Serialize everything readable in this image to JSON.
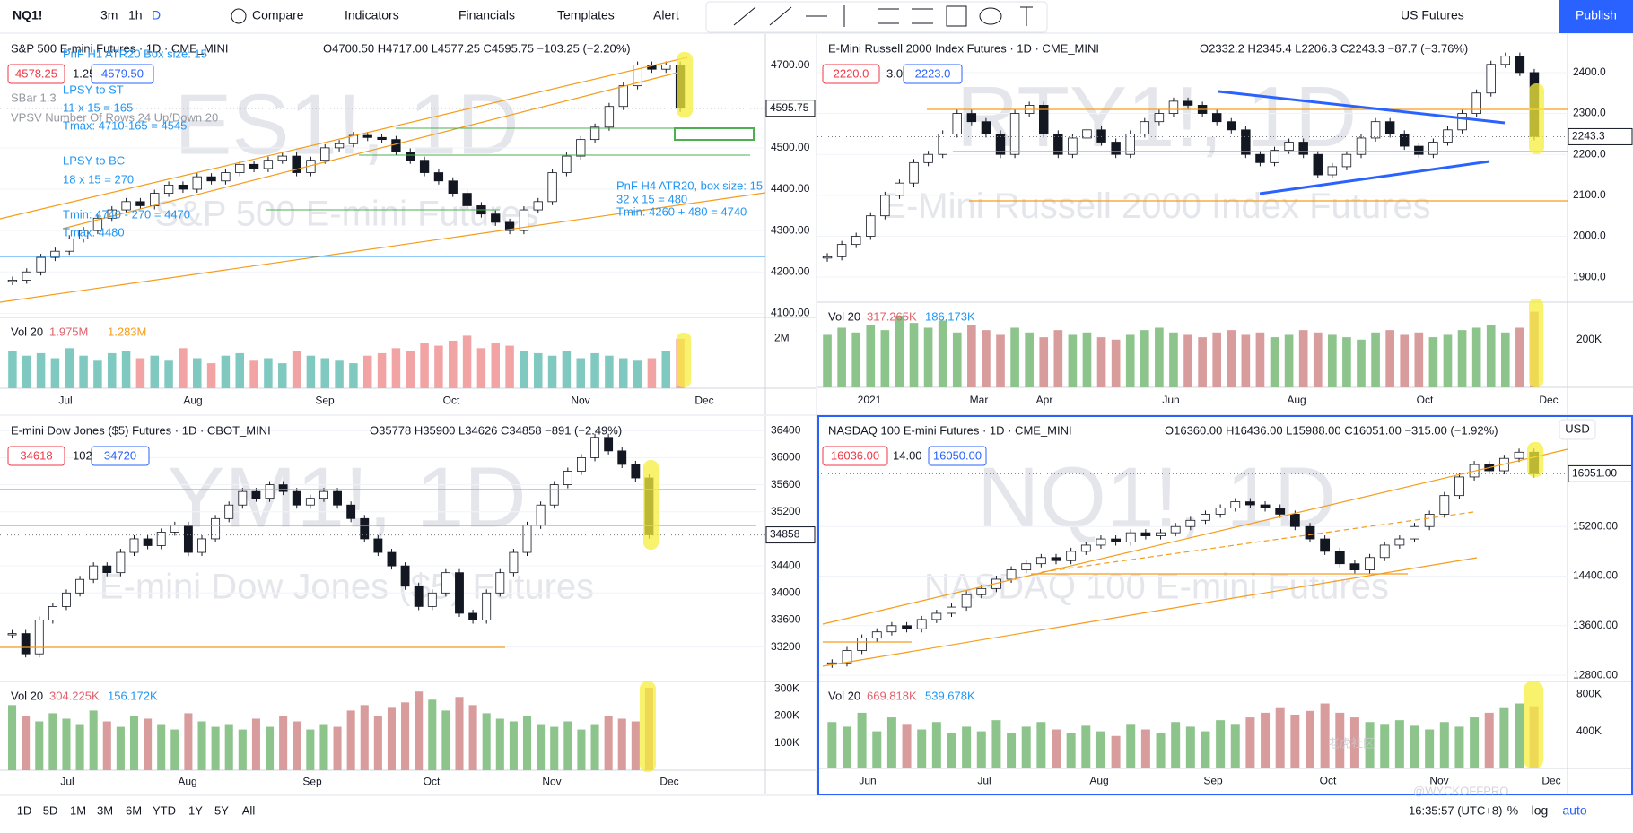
{
  "toolbar": {
    "symbol": "NQ1!",
    "intervals": [
      "3m",
      "1h",
      "D"
    ],
    "buttons": [
      "Compare",
      "Indicators",
      "Financials",
      "Templates",
      "Alert"
    ],
    "market": "US Futures",
    "publish": "Publish"
  },
  "panels": [
    {
      "title": "S&P 500 E-mini Futures · 1D · CME_MINI",
      "ohlc": "O4700.50 H4717.00 L4577.25 C4595.75 −103.25 (−2.20%)",
      "bid": "4578.25",
      "spread": "1.25",
      "ask": "4579.50",
      "watermark": "ES1!, 1D",
      "watermark_sub": "S&P 500 E-mini Futures",
      "last": 4595.75,
      "ylim": [
        4090,
        4775
      ],
      "yticks": [
        {
          "value": 4100,
          "label": "4100.00"
        },
        {
          "value": 4200,
          "label": "4200.00"
        },
        {
          "value": 4300,
          "label": "4300.00"
        },
        {
          "value": 4400,
          "label": "4400.00"
        },
        {
          "value": 4500,
          "label": "4500.00"
        },
        {
          "value": 4700,
          "label": "4700.00"
        }
      ],
      "xlabels": [
        "Jul",
        "Aug",
        "Sep",
        "Oct",
        "Nov",
        "Dec"
      ],
      "close": [
        4180,
        4200,
        4235,
        4250,
        4280,
        4300,
        4330,
        4350,
        4370,
        4360,
        4390,
        4410,
        4400,
        4430,
        4420,
        4440,
        4460,
        4450,
        4470,
        4480,
        4440,
        4470,
        4500,
        4510,
        4530,
        4525,
        4520,
        4490,
        4470,
        4440,
        4420,
        4390,
        4360,
        4340,
        4320,
        4300,
        4350,
        4370,
        4440,
        4480,
        4520,
        4550,
        4600,
        4650,
        4700,
        4690,
        4700,
        4595.75
      ],
      "vol_label": "Vol 20",
      "vol_values": [
        "1.975M",
        "1.283M"
      ],
      "vol_ylim": [
        0,
        2830000
      ],
      "vol_ticks": [
        {
          "value": 2000000,
          "label": "2M"
        }
      ],
      "up_color": "#7fc9c1",
      "down_color": "#f2a4a4",
      "volume": [
        1500000,
        1300000,
        1400000,
        1200000,
        1600000,
        1300000,
        1100000,
        1400000,
        1500000,
        1200000,
        1300000,
        1100000,
        1600000,
        1200000,
        1000000,
        1300000,
        1400000,
        1100000,
        1200000,
        1000000,
        1500000,
        1300000,
        1200000,
        1100000,
        1000000,
        1300000,
        1400000,
        1600000,
        1500000,
        1800000,
        1700000,
        1900000,
        2100000,
        1600000,
        1800000,
        1700000,
        1500000,
        1400000,
        1300000,
        1500000,
        1200000,
        1400000,
        1300000,
        1200000,
        1100000,
        1200000,
        1500000,
        1975000
      ]
    },
    {
      "title": "E-Mini Russell 2000 Index Futures · 1D · CME_MINI",
      "ohlc": "O2332.2 H2345.4 L2206.3 C2243.3 −87.7 (−3.76%)",
      "bid": "2220.0",
      "spread": "3.0",
      "ask": "2223.0",
      "watermark": "RTY1!, 1D",
      "watermark_sub": "E-Mini Russell 2000 Index Futures",
      "last": 2243.3,
      "ylim": [
        1839,
        2494
      ],
      "yticks": [
        {
          "value": 1900,
          "label": "1900.0"
        },
        {
          "value": 2000,
          "label": "2000.0"
        },
        {
          "value": 2100,
          "label": "2100.0"
        },
        {
          "value": 2200,
          "label": "2200.0"
        },
        {
          "value": 2300,
          "label": "2300.0"
        },
        {
          "value": 2400,
          "label": "2400.0"
        }
      ],
      "xlabels": [
        "2021",
        "Mar",
        "Apr",
        "Jun",
        "Aug",
        "Oct",
        "Dec"
      ],
      "close": [
        1950,
        1980,
        2000,
        2050,
        2100,
        2130,
        2180,
        2200,
        2250,
        2300,
        2280,
        2250,
        2200,
        2300,
        2320,
        2250,
        2200,
        2240,
        2260,
        2230,
        2200,
        2250,
        2280,
        2300,
        2330,
        2320,
        2300,
        2280,
        2260,
        2200,
        2180,
        2210,
        2230,
        2200,
        2150,
        2170,
        2200,
        2240,
        2280,
        2250,
        2220,
        2200,
        2230,
        2260,
        2300,
        2350,
        2420,
        2440,
        2400,
        2243.3
      ],
      "vol_label": "Vol 20",
      "vol_values": [
        "317.265K",
        "186.173K"
      ],
      "vol_ylim": [
        0,
        357000
      ],
      "vol_ticks": [
        {
          "value": 200000,
          "label": "200K"
        }
      ],
      "up_color": "#8cc48b",
      "down_color": "#d89c9c",
      "volume": [
        220000,
        250000,
        230000,
        260000,
        240000,
        300000,
        270000,
        250000,
        280000,
        230000,
        260000,
        240000,
        220000,
        250000,
        230000,
        210000,
        240000,
        220000,
        230000,
        210000,
        200000,
        220000,
        240000,
        250000,
        230000,
        220000,
        210000,
        230000,
        240000,
        220000,
        230000,
        210000,
        220000,
        240000,
        230000,
        220000,
        210000,
        200000,
        230000,
        240000,
        220000,
        230000,
        210000,
        220000,
        240000,
        250000,
        260000,
        230000,
        250000,
        317265
      ]
    },
    {
      "title": "E-mini Dow Jones ($5) Futures · 1D · CBOT_MINI",
      "ohlc": "O35778 H35900 L34626 C34858 −891 (−2.49%)",
      "bid": "34618",
      "spread": "102",
      "ask": "34720",
      "watermark": "YM1!, 1D",
      "watermark_sub": "E-mini Dow Jones ($5) Futures",
      "last": 34858,
      "ylim": [
        32692,
        36615
      ],
      "yticks": [
        33200,
        33600,
        34000,
        34400,
        35200,
        35600,
        36000,
        36400
      ],
      "xlabels": [
        "Jul",
        "Aug",
        "Sep",
        "Oct",
        "Nov",
        "Dec"
      ],
      "close": [
        33400,
        33100,
        33600,
        33800,
        34000,
        34200,
        34400,
        34300,
        34600,
        34800,
        34700,
        34900,
        35000,
        34600,
        34800,
        35100,
        35300,
        35500,
        35400,
        35600,
        35500,
        35300,
        35400,
        35500,
        35300,
        35100,
        34800,
        34600,
        34400,
        34100,
        33800,
        34000,
        34300,
        33700,
        33600,
        34000,
        34300,
        34600,
        35000,
        35300,
        35600,
        35800,
        36000,
        36300,
        36100,
        35900,
        35700,
        34858
      ],
      "vol_label": "Vol 20",
      "vol_values": [
        "304.225K",
        "156.172K"
      ],
      "vol_ylim": [
        0,
        327000
      ],
      "vol_ticks": [
        {
          "value": 100000,
          "label": "100K"
        },
        {
          "value": 200000,
          "label": "200K"
        },
        {
          "value": 300000,
          "label": "300K"
        }
      ],
      "up_color": "#8cc48b",
      "down_color": "#d89c9c",
      "volume": [
        240000,
        200000,
        180000,
        210000,
        190000,
        170000,
        220000,
        180000,
        160000,
        200000,
        190000,
        170000,
        150000,
        210000,
        180000,
        160000,
        170000,
        150000,
        190000,
        160000,
        200000,
        180000,
        150000,
        170000,
        160000,
        220000,
        240000,
        200000,
        230000,
        250000,
        290000,
        260000,
        220000,
        270000,
        240000,
        210000,
        190000,
        180000,
        200000,
        170000,
        160000,
        180000,
        150000,
        170000,
        200000,
        190000,
        180000,
        304225
      ]
    },
    {
      "title": "NASDAQ 100 E-mini Futures · 1D · CME_MINI",
      "ohlc": "O16360.00 H16436.00 L15988.00 C16051.00 −315.00 (−1.92%)",
      "bid": "16036.00",
      "spread": "14.00",
      "ask": "16050.00",
      "watermark": "NQ1!, 1D",
      "watermark_sub": "NASDAQ 100 E-mini Futures",
      "last": {
        "value": 16051,
        "label": "16051.00"
      },
      "ylim": [
        12700,
        16983
      ],
      "yticks": [
        {
          "value": 12800,
          "label": "12800.00"
        },
        {
          "value": 13600,
          "label": "13600.00"
        },
        {
          "value": 14400,
          "label": "14400.00"
        },
        {
          "value": 15200,
          "label": "15200.00"
        }
      ],
      "xlabels": [
        "Jun",
        "Jul",
        "Aug",
        "Sep",
        "Oct",
        "Nov",
        "Dec"
      ],
      "close": [
        13000,
        13200,
        13400,
        13500,
        13600,
        13550,
        13700,
        13800,
        13900,
        14100,
        14200,
        14350,
        14500,
        14600,
        14700,
        14650,
        14800,
        14900,
        15000,
        14950,
        15100,
        15050,
        15100,
        15200,
        15300,
        15400,
        15500,
        15600,
        15550,
        15500,
        15400,
        15200,
        15000,
        14800,
        14600,
        14500,
        14700,
        14900,
        15000,
        15200,
        15400,
        15700,
        16000,
        16200,
        16100,
        16300,
        16400,
        16051
      ],
      "vol_label": "Vol 20",
      "vol_values": [
        "669.818K",
        "539.678K"
      ],
      "vol_ylim": [
        0,
        937000
      ],
      "vol_ticks": [
        {
          "value": 400000,
          "label": "400K"
        },
        {
          "value": 800000,
          "label": "800K"
        }
      ],
      "up_color": "#8cc48b",
      "down_color": "#d89c9c",
      "volume": [
        500000,
        450000,
        600000,
        400000,
        550000,
        480000,
        420000,
        500000,
        380000,
        450000,
        400000,
        520000,
        380000,
        450000,
        500000,
        420000,
        380000,
        460000,
        400000,
        350000,
        480000,
        420000,
        380000,
        500000,
        450000,
        400000,
        520000,
        480000,
        550000,
        600000,
        650000,
        580000,
        620000,
        700000,
        600000,
        550000,
        500000,
        480000,
        520000,
        460000,
        420000,
        500000,
        450000,
        550000,
        600000,
        650000,
        700000,
        669818
      ]
    }
  ],
  "annotations": [
    "PnF H1 ATR20 Box size: 15",
    "LPSY to ST",
    "11 x 15 = 165",
    "Tmax: 4710-165 = 4545",
    "LPSY to BC",
    "18 x 15 = 270",
    "Tmin: 4740 - 270 = 4470",
    "Tmax: 4480",
    "PnF H4 ATR20, box size: 15",
    "32 x 15 = 480",
    "Tmin: 4260 + 480 = 4740"
  ],
  "indicator_labels": [
    "SBar 1.3",
    "VPSV Number Of Rows 24 Up/Down 20"
  ],
  "currency": "USD",
  "bottom": {
    "ranges": [
      "1D",
      "5D",
      "1M",
      "3M",
      "6M",
      "YTD",
      "1Y",
      "5Y",
      "All"
    ],
    "time": "16:35:57 (UTC+8)",
    "options": [
      "%",
      "log",
      "auto"
    ]
  },
  "watermark": {
    "cn": "老虎社区",
    "handle": "@WYCKOFFPRO"
  }
}
